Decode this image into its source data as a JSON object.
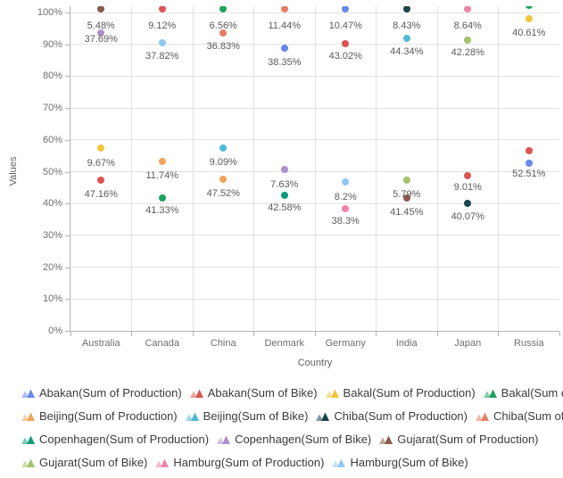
{
  "chart_data": {
    "type": "scatter",
    "title": "",
    "xlabel": "Country",
    "ylabel": "Values",
    "categories": [
      "Australia",
      "Canada",
      "China",
      "Denmark",
      "Germany",
      "India",
      "Japan",
      "Russia"
    ],
    "ylim": [
      0,
      100
    ],
    "y_ticks": [
      "0%",
      "10%",
      "20%",
      "30%",
      "40%",
      "50%",
      "60%",
      "70%",
      "80%",
      "90%",
      "100%"
    ],
    "grid": true,
    "legend_position": "bottom",
    "series": [
      {
        "name": "Abakan(Sum of Production)",
        "color": "#6889e8",
        "points": [
          {
            "x": "Denmark",
            "y": 88.8
          },
          {
            "x": "Germany",
            "y": 101.0
          },
          {
            "x": "Russia",
            "y": 52.7
          }
        ]
      },
      {
        "name": "Abakan(Sum of Bike)",
        "color": "#dc5451",
        "points": [
          {
            "x": "Australia",
            "y": 47.3
          },
          {
            "x": "Canada",
            "y": 101.0
          },
          {
            "x": "Germany",
            "y": 90.2
          },
          {
            "x": "Japan",
            "y": 48.7
          },
          {
            "x": "Russia",
            "y": 56.6
          }
        ]
      },
      {
        "name": "Bakal(Sum of Production)",
        "color": "#f3c53d",
        "points": [
          {
            "x": "Australia",
            "y": 57.3
          },
          {
            "x": "Russia",
            "y": 98.0
          }
        ]
      },
      {
        "name": "Bakal(Sum of Bike)",
        "color": "#1aa45f",
        "points": [
          {
            "x": "Canada",
            "y": 41.7
          },
          {
            "x": "China",
            "y": 101.0
          },
          {
            "x": "Russia",
            "y": 102.2
          }
        ]
      },
      {
        "name": "Beijing(Sum of Production)",
        "color": "#f0a457",
        "points": [
          {
            "x": "Canada",
            "y": 53.2
          },
          {
            "x": "China",
            "y": 47.6
          }
        ]
      },
      {
        "name": "Beijing(Sum of Bike)",
        "color": "#50b8da",
        "points": [
          {
            "x": "China",
            "y": 57.4
          },
          {
            "x": "India",
            "y": 91.9
          }
        ]
      },
      {
        "name": "Chiba(Sum of Production)",
        "color": "#19424e",
        "points": [
          {
            "x": "India",
            "y": 101.0
          },
          {
            "x": "Japan",
            "y": 40.1
          }
        ]
      },
      {
        "name": "Chiba(Sum of Bike)",
        "color": "#e57d64",
        "points": [
          {
            "x": "China",
            "y": 93.6
          },
          {
            "x": "Denmark",
            "y": 101.0
          }
        ]
      },
      {
        "name": "Copenhagen(Sum of Production)",
        "color": "#0f9b78",
        "points": [
          {
            "x": "Denmark",
            "y": 42.7
          }
        ]
      },
      {
        "name": "Copenhagen(Sum of Bike)",
        "color": "#ab90cb",
        "points": [
          {
            "x": "Australia",
            "y": 93.6
          },
          {
            "x": "Denmark",
            "y": 50.7
          }
        ]
      },
      {
        "name": "Gujarat(Sum of Production)",
        "color": "#8a5a4c",
        "points": [
          {
            "x": "Australia",
            "y": 101.0
          },
          {
            "x": "India",
            "y": 41.6
          }
        ]
      },
      {
        "name": "Gujarat(Sum of Bike)",
        "color": "#a3c169",
        "points": [
          {
            "x": "India",
            "y": 47.3
          },
          {
            "x": "Japan",
            "y": 91.3
          }
        ]
      },
      {
        "name": "Hamburg(Sum of Production)",
        "color": "#f283a6",
        "points": [
          {
            "x": "Germany",
            "y": 38.4
          },
          {
            "x": "Japan",
            "y": 101.0
          }
        ]
      },
      {
        "name": "Hamburg(Sum of Bike)",
        "color": "#90c7f3",
        "points": [
          {
            "x": "Canada",
            "y": 90.5
          },
          {
            "x": "Germany",
            "y": 46.8
          }
        ]
      }
    ],
    "data_labels": [
      {
        "x": "Australia",
        "text": "5.48%",
        "y": 95.8
      },
      {
        "x": "Australia",
        "text": "37.69%",
        "y": 91.6
      },
      {
        "x": "Australia",
        "text": "9.67%",
        "y": 52.7
      },
      {
        "x": "Australia",
        "text": "47.16%",
        "y": 42.9
      },
      {
        "x": "Canada",
        "text": "9.12%",
        "y": 95.8
      },
      {
        "x": "Canada",
        "text": "37.82%",
        "y": 86.3
      },
      {
        "x": "Canada",
        "text": "11.74%",
        "y": 48.7
      },
      {
        "x": "Canada",
        "text": "41.33%",
        "y": 37.8
      },
      {
        "x": "China",
        "text": "6.56%",
        "y": 95.8
      },
      {
        "x": "China",
        "text": "36.83%",
        "y": 89.4
      },
      {
        "x": "China",
        "text": "9.09%",
        "y": 52.9
      },
      {
        "x": "China",
        "text": "47.52%",
        "y": 43.1
      },
      {
        "x": "Denmark",
        "text": "11.44%",
        "y": 95.8
      },
      {
        "x": "Denmark",
        "text": "38.35%",
        "y": 84.3
      },
      {
        "x": "Denmark",
        "text": "7.63%",
        "y": 45.9
      },
      {
        "x": "Denmark",
        "text": "42.58%",
        "y": 38.7
      },
      {
        "x": "Germany",
        "text": "10.47%",
        "y": 95.8
      },
      {
        "x": "Germany",
        "text": "43.02%",
        "y": 86.3
      },
      {
        "x": "Germany",
        "text": "8.2%",
        "y": 42.0
      },
      {
        "x": "Germany",
        "text": "38.3%",
        "y": 34.5
      },
      {
        "x": "India",
        "text": "8.43%",
        "y": 95.8
      },
      {
        "x": "India",
        "text": "44.34%",
        "y": 87.7
      },
      {
        "x": "India",
        "text": "5.79%",
        "y": 42.9
      },
      {
        "x": "India",
        "text": "41.45%",
        "y": 37.3
      },
      {
        "x": "Japan",
        "text": "8.64%",
        "y": 95.8
      },
      {
        "x": "Japan",
        "text": "42.28%",
        "y": 87.4
      },
      {
        "x": "Japan",
        "text": "9.01%",
        "y": 45.1
      },
      {
        "x": "Japan",
        "text": "40.07%",
        "y": 35.9
      },
      {
        "x": "Russia",
        "text": "40.61%",
        "y": 93.6
      },
      {
        "x": "Russia",
        "text": "52.51%",
        "y": 49.3
      }
    ]
  },
  "legend": {
    "rows": [
      [
        "Abakan(Sum of Production)",
        "Abakan(Sum of Bike)",
        "Bakal(Sum of Production)",
        "Bakal(Sum of Bike)"
      ],
      [
        "Beijing(Sum of Production)",
        "Beijing(Sum of Bike)",
        "Chiba(Sum of Production)",
        "Chiba(Sum of Bike)"
      ],
      [
        "Copenhagen(Sum of Production)",
        "Copenhagen(Sum of Bike)",
        "Gujarat(Sum of Production)"
      ],
      [
        "Gujarat(Sum of Bike)",
        "Hamburg(Sum of Production)",
        "Hamburg(Sum of Bike)"
      ]
    ]
  },
  "style": {
    "grid_color": "#e2e2e2",
    "axis_color": "#b5b5b5",
    "tick_text_color": "#6e6e6e",
    "data_label_color": "#5a5a5a",
    "legend_text_color": "#3b3b3b"
  }
}
